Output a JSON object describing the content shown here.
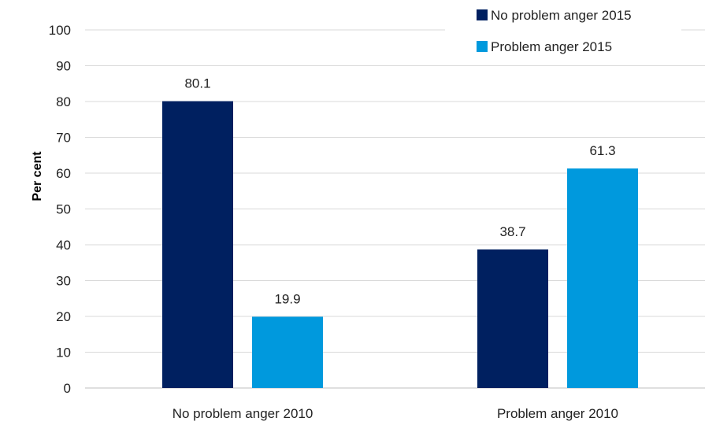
{
  "chart_data": {
    "type": "bar",
    "title": "",
    "xlabel": "",
    "ylabel": "Per cent",
    "ylim": [
      0,
      100
    ],
    "yticks": [
      0,
      10,
      20,
      30,
      40,
      50,
      60,
      70,
      80,
      90,
      100
    ],
    "grid": true,
    "legend_position": "top-right",
    "categories": [
      "No problem anger 2010",
      "Problem anger 2010"
    ],
    "series": [
      {
        "name": "No problem anger 2015",
        "color": "#002060",
        "values": [
          80.1,
          38.7
        ]
      },
      {
        "name": "Problem anger 2015",
        "color": "#0099DD",
        "values": [
          19.9,
          61.3
        ]
      }
    ]
  }
}
